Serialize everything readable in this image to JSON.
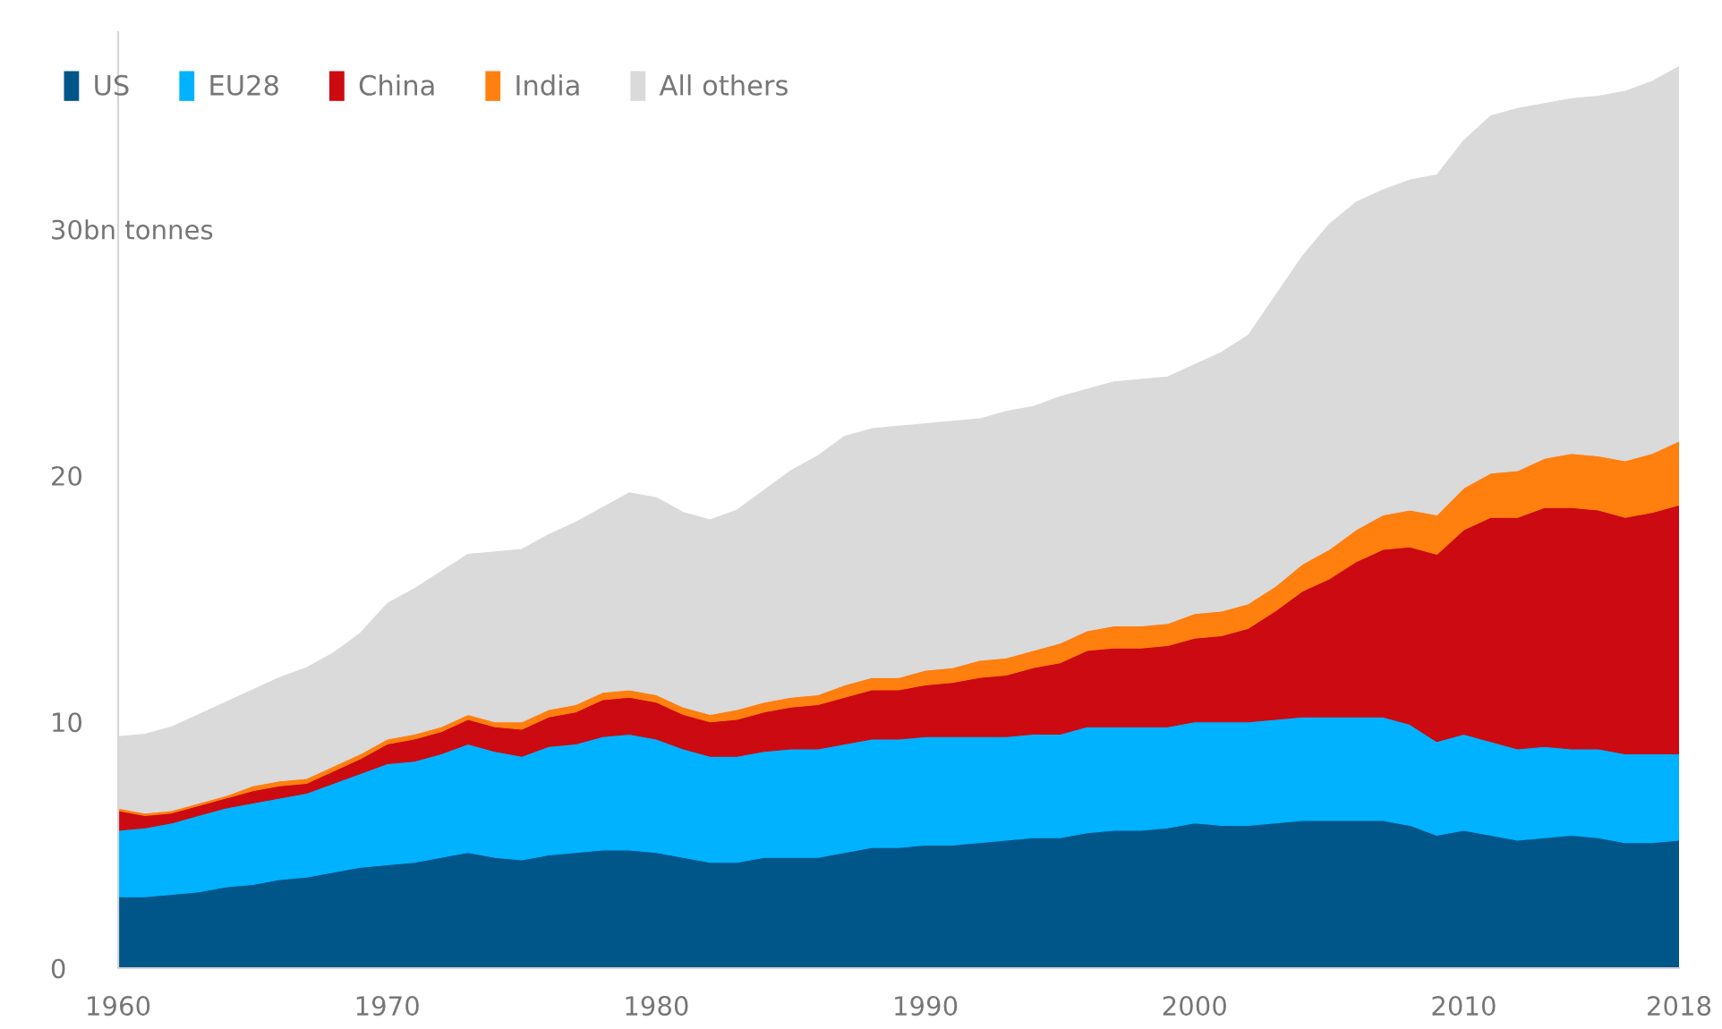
{
  "chart_data": {
    "type": "area",
    "stacked": true,
    "x": [
      1960,
      1961,
      1962,
      1963,
      1964,
      1965,
      1966,
      1967,
      1968,
      1969,
      1970,
      1971,
      1972,
      1973,
      1974,
      1975,
      1976,
      1977,
      1978,
      1979,
      1980,
      1981,
      1982,
      1983,
      1984,
      1985,
      1986,
      1987,
      1988,
      1989,
      1990,
      1991,
      1992,
      1993,
      1994,
      1995,
      1996,
      1997,
      1998,
      1999,
      2000,
      2001,
      2002,
      2003,
      2004,
      2005,
      2006,
      2007,
      2008,
      2009,
      2010,
      2011,
      2012,
      2013,
      2014,
      2015,
      2016,
      2017,
      2018
    ],
    "xlim": [
      1960,
      2018
    ],
    "xticks": [
      1960,
      1970,
      1980,
      1990,
      2000,
      2010,
      2018
    ],
    "ylim": [
      0,
      38
    ],
    "yticks": [
      0,
      10,
      20,
      {
        "value": 30,
        "label": "30bn tonnes"
      }
    ],
    "grid": false,
    "legend": "top left",
    "series": [
      {
        "name": "US",
        "color": "#005689",
        "values": [
          2.9,
          2.9,
          3.0,
          3.1,
          3.3,
          3.4,
          3.6,
          3.7,
          3.9,
          4.1,
          4.2,
          4.3,
          4.5,
          4.7,
          4.5,
          4.4,
          4.6,
          4.7,
          4.8,
          4.8,
          4.7,
          4.5,
          4.3,
          4.3,
          4.5,
          4.5,
          4.5,
          4.7,
          4.9,
          4.9,
          5.0,
          5.0,
          5.1,
          5.2,
          5.3,
          5.3,
          5.5,
          5.6,
          5.6,
          5.7,
          5.9,
          5.8,
          5.8,
          5.9,
          6.0,
          6.0,
          6.0,
          6.0,
          5.8,
          5.4,
          5.6,
          5.4,
          5.2,
          5.3,
          5.4,
          5.3,
          5.1,
          5.1,
          5.2
        ]
      },
      {
        "name": "EU28",
        "color": "#00b2ff",
        "values": [
          2.7,
          2.8,
          2.9,
          3.1,
          3.2,
          3.3,
          3.3,
          3.4,
          3.6,
          3.8,
          4.1,
          4.1,
          4.2,
          4.4,
          4.3,
          4.2,
          4.4,
          4.4,
          4.6,
          4.7,
          4.6,
          4.4,
          4.3,
          4.3,
          4.3,
          4.4,
          4.4,
          4.4,
          4.4,
          4.4,
          4.4,
          4.4,
          4.3,
          4.2,
          4.2,
          4.2,
          4.3,
          4.2,
          4.2,
          4.1,
          4.1,
          4.2,
          4.2,
          4.2,
          4.2,
          4.2,
          4.2,
          4.2,
          4.1,
          3.8,
          3.9,
          3.8,
          3.7,
          3.7,
          3.5,
          3.6,
          3.6,
          3.6,
          3.5
        ]
      },
      {
        "name": "China",
        "color": "#cc0a11",
        "values": [
          0.8,
          0.5,
          0.4,
          0.4,
          0.4,
          0.5,
          0.5,
          0.4,
          0.5,
          0.6,
          0.8,
          0.9,
          0.9,
          1.0,
          1.0,
          1.1,
          1.2,
          1.3,
          1.5,
          1.5,
          1.5,
          1.4,
          1.4,
          1.5,
          1.6,
          1.7,
          1.8,
          1.9,
          2.0,
          2.0,
          2.1,
          2.2,
          2.4,
          2.5,
          2.7,
          2.9,
          3.1,
          3.2,
          3.2,
          3.3,
          3.4,
          3.5,
          3.8,
          4.4,
          5.1,
          5.6,
          6.3,
          6.8,
          7.2,
          7.6,
          8.3,
          9.1,
          9.4,
          9.7,
          9.8,
          9.7,
          9.6,
          9.8,
          10.1
        ]
      },
      {
        "name": "India",
        "color": "#ff7f0f",
        "values": [
          0.1,
          0.1,
          0.1,
          0.1,
          0.1,
          0.2,
          0.2,
          0.2,
          0.2,
          0.2,
          0.2,
          0.2,
          0.2,
          0.2,
          0.2,
          0.3,
          0.3,
          0.3,
          0.3,
          0.3,
          0.3,
          0.3,
          0.3,
          0.4,
          0.4,
          0.4,
          0.4,
          0.5,
          0.5,
          0.5,
          0.6,
          0.6,
          0.7,
          0.7,
          0.7,
          0.8,
          0.8,
          0.9,
          0.9,
          0.9,
          1.0,
          1.0,
          1.0,
          1.0,
          1.1,
          1.2,
          1.3,
          1.4,
          1.5,
          1.6,
          1.7,
          1.8,
          1.9,
          2.0,
          2.2,
          2.2,
          2.3,
          2.4,
          2.6
        ]
      },
      {
        "name": "All others",
        "color": "#dadada",
        "values": [
          2.9,
          3.2,
          3.4,
          3.6,
          3.8,
          3.9,
          4.2,
          4.5,
          4.6,
          4.9,
          5.5,
          5.9,
          6.3,
          6.5,
          6.9,
          7.0,
          7.1,
          7.4,
          7.5,
          8.0,
          8.0,
          7.9,
          7.9,
          8.1,
          8.6,
          9.2,
          9.7,
          10.1,
          10.1,
          10.2,
          10.0,
          10.0,
          9.8,
          10.0,
          9.9,
          10.0,
          9.8,
          9.9,
          10.0,
          10.0,
          10.1,
          10.5,
          10.9,
          11.8,
          12.5,
          13.2,
          13.3,
          13.2,
          13.4,
          13.8,
          14.1,
          14.5,
          14.7,
          14.4,
          14.4,
          14.6,
          15.0,
          15.1,
          15.2
        ]
      }
    ]
  }
}
